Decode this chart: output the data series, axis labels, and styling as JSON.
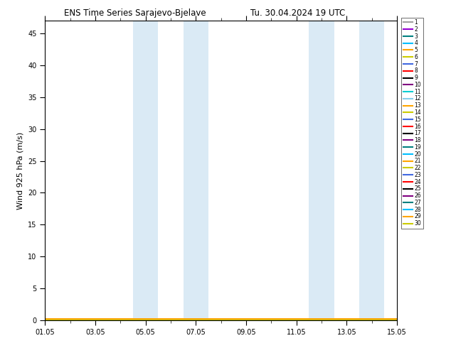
{
  "title_left": "ENS Time Series Sarajevo-Bjelave",
  "title_right": "Tu. 30.04.2024 19 UTC",
  "ylabel": "Wind 925 hPa (m/s)",
  "ylim": [
    0,
    47
  ],
  "yticks": [
    0,
    5,
    10,
    15,
    20,
    25,
    30,
    35,
    40,
    45
  ],
  "x_start": 0,
  "x_end": 14,
  "xtick_labels": [
    "01.05",
    "03.05",
    "05.05",
    "07.05",
    "09.05",
    "11.05",
    "13.05",
    "15.05"
  ],
  "xtick_positions": [
    0,
    2,
    4,
    6,
    8,
    10,
    12,
    14
  ],
  "shaded_regions": [
    [
      3.5,
      4.5
    ],
    [
      5.5,
      6.5
    ],
    [
      10.5,
      11.5
    ],
    [
      12.5,
      13.5
    ]
  ],
  "shade_color": "#daeaf5",
  "n_members": 30,
  "figsize": [
    6.34,
    4.9
  ],
  "dpi": 100,
  "member_colors": [
    "#a0a0a0",
    "#9400d3",
    "#008080",
    "#00bfff",
    "#ffa500",
    "#cccc00",
    "#4169e1",
    "#ff0000",
    "#000000",
    "#800080",
    "#00ced1",
    "#87ceeb",
    "#ffa500",
    "#cccc00",
    "#4169e1",
    "#ff0000",
    "#000000",
    "#800080",
    "#008080",
    "#00bfff",
    "#ffa500",
    "#cccc00",
    "#4169e1",
    "#ff0000",
    "#000000",
    "#800080",
    "#008080",
    "#00bfff",
    "#ffa500",
    "#cccc00"
  ]
}
